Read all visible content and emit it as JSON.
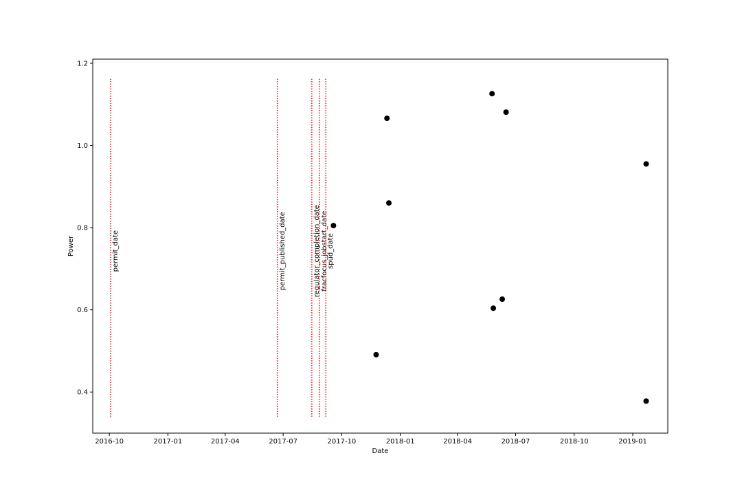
{
  "chart_data": {
    "type": "scatter",
    "xlabel": "Date",
    "ylabel": "Power",
    "xlim": [
      "2016-09-05",
      "2019-02-25"
    ],
    "ylim": [
      0.3,
      1.21
    ],
    "x_ticks": [
      "2016-10-01",
      "2017-01-01",
      "2017-04-01",
      "2017-07-01",
      "2017-10-01",
      "2018-01-01",
      "2018-04-01",
      "2018-07-01",
      "2018-10-01",
      "2019-01-01"
    ],
    "x_tick_labels": [
      "2016-10",
      "2017-01",
      "2017-04",
      "2017-07",
      "2017-10",
      "2018-01",
      "2018-04",
      "2018-07",
      "2018-10",
      "2019-01"
    ],
    "y_ticks": [
      0.4,
      0.6,
      0.8,
      1.0,
      1.2
    ],
    "y_tick_labels": [
      "0.4",
      "0.6",
      "0.8",
      "1.0",
      "1.2"
    ],
    "grid": false,
    "point_color": "#000000",
    "line_color": "#ff0000",
    "points": [
      {
        "x": "2017-09-18",
        "y": 0.805
      },
      {
        "x": "2017-11-24",
        "y": 0.491
      },
      {
        "x": "2017-12-11",
        "y": 1.066
      },
      {
        "x": "2017-12-14",
        "y": 0.86
      },
      {
        "x": "2018-05-25",
        "y": 1.126
      },
      {
        "x": "2018-05-27",
        "y": 0.604
      },
      {
        "x": "2018-06-10",
        "y": 0.626
      },
      {
        "x": "2018-06-16",
        "y": 1.081
      },
      {
        "x": "2019-01-22",
        "y": 0.955
      },
      {
        "x": "2019-01-22",
        "y": 0.378
      }
    ],
    "vlines": [
      {
        "x": "2016-10-03",
        "label": "permit_date"
      },
      {
        "x": "2017-06-22",
        "label": "permit_published_date"
      },
      {
        "x": "2017-08-15",
        "label": "regulator_completion_date"
      },
      {
        "x": "2017-08-27",
        "label": "fracfocus_jobstart_date"
      },
      {
        "x": "2017-09-06",
        "label": "spud_date"
      }
    ],
    "vline_range": [
      0.34,
      1.165
    ]
  }
}
